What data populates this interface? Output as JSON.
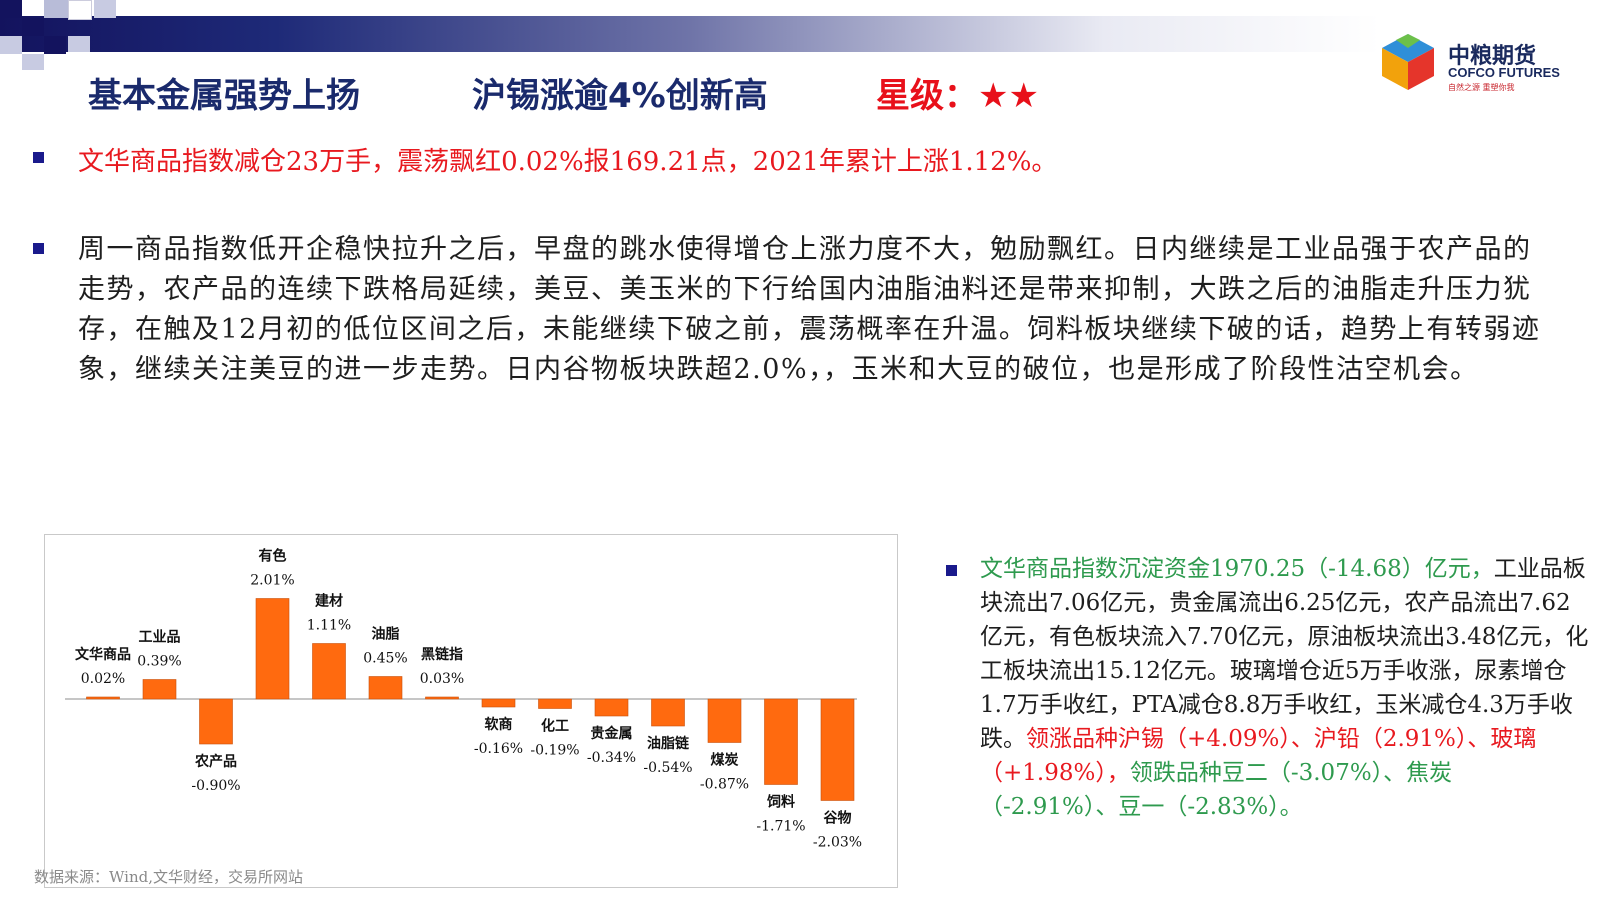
{
  "header": {
    "title_main": "基本金属强势上扬",
    "title_sub": "沪锡涨逾4%创新高",
    "rating_label": "星级：",
    "rating_stars": "★★"
  },
  "logo": {
    "name_cn": "中粮期货",
    "name_en": "COFCO FUTURES",
    "tagline": "自然之源 重塑你我",
    "icon": "cofco-cube-icon"
  },
  "bullets": {
    "summary": "文华商品指数减仓23万手，震荡飘红0.02%报169.21点，2021年累计上涨1.12%。",
    "commentary": "周一商品指数低开企稳快拉升之后，早盘的跳水使得增仓上涨力度不大，勉励飘红。日内继续是工业品强于农产品的走势，农产品的连续下跌格局延续，美豆、美玉米的下行给国内油脂油料还是带来抑制，大跌之后的油脂走升压力犹存，在触及12月初的低位区间之后，未能继续下破之前，震荡概率在升温。饲料板块继续下破的话，趋势上有转弱迹象，继续关注美豆的进一步走势。日内谷物板块跌超2.0%，，玉米和大豆的破位，也是形成了阶段性沽空机会。"
  },
  "right_text": {
    "green_intro": "文华商品指数沉淀资金1970.25（-14.68）亿元，",
    "body": "工业品板块流出7.06亿元，贵金属流出6.25亿元，农产品流出7.62亿元，有色板块流入7.70亿元，原油板块流出3.48亿元，化工板块流出15.12亿元。玻璃增仓近5万手收涨，尿素增仓1.7万手收红，PTA减仓8.8万手收红，玉米减仓4.3万手收跌。",
    "red_leaders": "领涨品种沪锡（+4.09%）、沪铅（2.91%）、玻璃（+1.98%），",
    "green_laggards": "领跌品种豆二（-3.07%）、焦炭（-2.91%）、豆一（-2.83%）。"
  },
  "chart_data": {
    "type": "bar",
    "categories": [
      "文华商品",
      "工业品",
      "农产品",
      "有色",
      "建材",
      "油脂",
      "黑链指",
      "软商",
      "化工",
      "贵金属",
      "油脂链",
      "煤炭",
      "饲料",
      "谷物"
    ],
    "values": [
      0.02,
      0.39,
      -0.9,
      2.01,
      1.11,
      0.45,
      0.03,
      -0.16,
      -0.19,
      -0.34,
      -0.54,
      -0.87,
      -1.71,
      -2.03
    ],
    "value_labels": [
      "0.02%",
      "0.39%",
      "-0.90%",
      "2.01%",
      "1.11%",
      "0.45%",
      "0.03%",
      "-0.16%",
      "-0.19%",
      "-0.34%",
      "-0.54%",
      "-0.87%",
      "-1.71%",
      "-2.03%"
    ],
    "unit": "%",
    "bar_color": "#ff6a0f",
    "ylim": [
      -2.1,
      2.1
    ],
    "grid": false,
    "title": "",
    "xlabel": "",
    "ylabel": "",
    "source": "数据来源：Wind,文华财经，交易所网站"
  },
  "colors": {
    "navy": "#1a2a6c",
    "red": "#e8101a",
    "green": "#2e9a4e",
    "bullet": "#1a1a8c"
  }
}
